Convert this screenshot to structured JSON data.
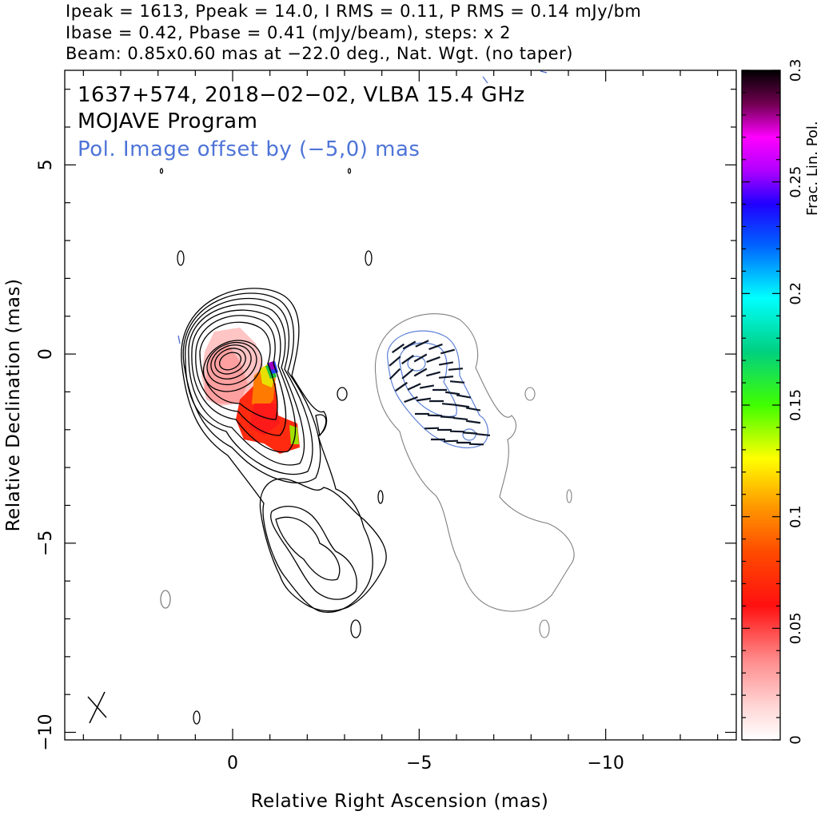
{
  "header": {
    "line1": "Ipeak = 1613, Ppeak = 14.0, I RMS = 0.11, P RMS = 0.14 mJy/bm",
    "line2": "Ibase = 0.42, Pbase = 0.41 (mJy/beam), steps: x 2",
    "line3": "Beam: 0.85x0.60 mas at −22.0 deg., Nat. Wgt. (no taper)"
  },
  "chart_data": {
    "type": "heatmap",
    "title": "1637+574, 2018−02−02, VLBA 15.4 GHz",
    "subtitle": "MOJAVE Program",
    "annotation": "Pol. Image offset by (−5,0) mas",
    "xlabel": "Relative Right Ascension (mas)",
    "ylabel": "Relative Declination (mas)",
    "xlim": [
      4.5,
      -13.5
    ],
    "ylim": [
      -10.2,
      7.5
    ],
    "x_ticks": [
      {
        "v": 0,
        "label": "0"
      },
      {
        "v": -5,
        "label": "−5"
      },
      {
        "v": -10,
        "label": "−10"
      }
    ],
    "y_ticks": [
      {
        "v": 5,
        "label": "5"
      },
      {
        "v": 0,
        "label": "0"
      },
      {
        "v": -5,
        "label": "−5"
      },
      {
        "v": -10,
        "label": "−10"
      }
    ],
    "colorbar": {
      "label": "Frac. Lin. Pol.",
      "range": [
        0,
        0.3
      ],
      "ticks": [
        {
          "v": 0,
          "label": "0"
        },
        {
          "v": 0.05,
          "label": "0.05"
        },
        {
          "v": 0.1,
          "label": "0.1"
        },
        {
          "v": 0.15,
          "label": "0.15"
        },
        {
          "v": 0.2,
          "label": "0.2"
        },
        {
          "v": 0.25,
          "label": "0.25"
        },
        {
          "v": 0.3,
          "label": "0.3"
        }
      ]
    },
    "beam": {
      "major_mas": 0.85,
      "minor_mas": 0.6,
      "pa_deg": -22.0
    },
    "stokes_I_contours": {
      "peak_mJy_per_beam": 1613,
      "base_mJy_per_beam": 0.42,
      "step_factor": 2,
      "levels_mJy_per_beam": [
        0.42,
        0.84,
        1.68,
        3.36,
        6.72,
        13.44,
        26.88,
        53.76,
        107.52,
        215.04,
        430.08,
        860.16
      ]
    },
    "pol_offset_mas": [
      -5,
      0
    ],
    "colors": {
      "contours_I": "#000000",
      "contours_offset": "#808080",
      "pol_contours": "#5b7fd6",
      "evpa": "#101828",
      "annotation": "#4e74d8"
    }
  }
}
